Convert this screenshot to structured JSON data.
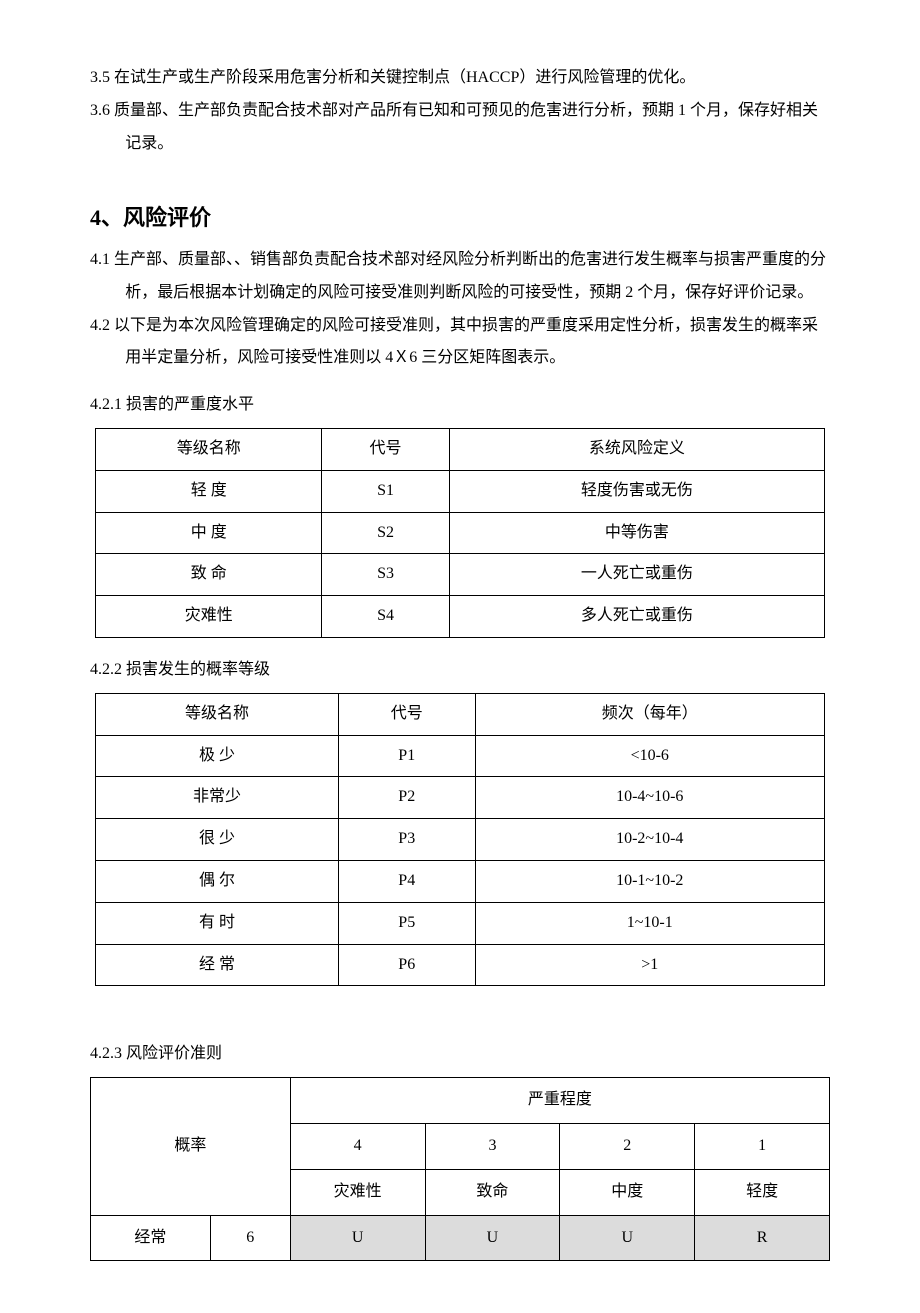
{
  "sec3": {
    "p35": "3.5 在试生产或生产阶段采用危害分析和关键控制点（HACCP）进行风险管理的优化。",
    "p36_a": "3.6 质量部、生产部负责配合技术部对产品所有已知和可预见的危害进行分析，预期 1 个月，保存好相关",
    "p36_b": "记录。"
  },
  "sec4": {
    "heading": "4、风险评价",
    "p41_a": "4.1 生产部、质量部、、销售部负责配合技术部对经风险分析判断出的危害进行发生概率与损害严重度的分",
    "p41_b": "析，最后根据本计划确定的风险可接受准则判断风险的可接受性，预期 2 个月，保存好评价记录。",
    "p42_a": "4.2 以下是为本次风险管理确定的风险可接受准则，其中损害的严重度采用定性分析，损害发生的概率采",
    "p42_b": "用半定量分析，风险可接受性准则以 4Ｘ6 三分区矩阵图表示。",
    "p421": "4.2.1 损害的严重度水平",
    "p422": "4.2.2 损害发生的概率等级",
    "p423": "4.2.3 风险评价准则"
  },
  "table1": {
    "headers": [
      "等级名称",
      "代号",
      "系统风险定义"
    ],
    "rows": [
      [
        "轻  度",
        "S1",
        "轻度伤害或无伤"
      ],
      [
        "中  度",
        "S2",
        "中等伤害"
      ],
      [
        "致  命",
        "S3",
        "一人死亡或重伤"
      ],
      [
        "灾难性",
        "S4",
        "多人死亡或重伤"
      ]
    ]
  },
  "table2": {
    "headers": [
      "等级名称",
      "代号",
      "频次（每年）"
    ],
    "rows": [
      [
        "极  少",
        "P1",
        "<10-6"
      ],
      [
        "非常少",
        "P2",
        "10-4~10-6"
      ],
      [
        "很  少",
        "P3",
        "10-2~10-4"
      ],
      [
        "偶  尔",
        "P4",
        "10-1~10-2"
      ],
      [
        "有  时",
        "P5",
        "1~10-1"
      ],
      [
        "经  常",
        "P6",
        ">1"
      ]
    ]
  },
  "table3": {
    "colgroup_widths": [
      "120",
      "80",
      "135",
      "135",
      "135",
      "135"
    ],
    "prob_header": "概率",
    "sev_header": "严重程度",
    "sev_nums": [
      "4",
      "3",
      "2",
      "1"
    ],
    "sev_labels": [
      "灾难性",
      "致命",
      "中度",
      "轻度"
    ],
    "row1": {
      "label": "经常",
      "num": "6",
      "cells": [
        "U",
        "U",
        "U",
        "R"
      ],
      "shaded": [
        true,
        true,
        true,
        true
      ]
    }
  }
}
